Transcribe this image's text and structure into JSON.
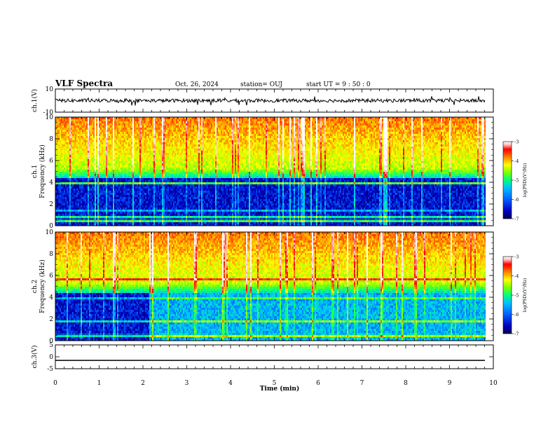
{
  "header": {
    "title": "VLF Spectra",
    "date": "Oct. 26, 2024",
    "station": "station= OUJ",
    "start": "start  UT =   9 : 50 : 0"
  },
  "chart_data": [
    {
      "type": "line",
      "panel": "ch1-waveform",
      "ylabel": "ch.1(V)",
      "ylim": [
        -10,
        10
      ],
      "yticks": [
        "10",
        "-10"
      ],
      "baseline": 0
    },
    {
      "type": "heatmap",
      "panel": "ch1-spectrogram",
      "ylabel": "ch.1\nFrequency (kHz)",
      "ylim": [
        0,
        10
      ],
      "yticks": [
        "0",
        "2",
        "4",
        "6",
        "8",
        "10"
      ],
      "colorbar": {
        "label": "log(PSD)(V²/Hz)",
        "range": [
          -7,
          -3
        ],
        "ticks": [
          "-3",
          "-4",
          "-5",
          "-6",
          "-7"
        ]
      }
    },
    {
      "type": "heatmap",
      "panel": "ch2-spectrogram",
      "ylabel": "ch.2\nFrequency (kHz)",
      "ylim": [
        0,
        10
      ],
      "yticks": [
        "0",
        "2",
        "4",
        "6",
        "8",
        "10"
      ],
      "colorbar": {
        "label": "log(PSD)(V²/Hz)",
        "range": [
          -7,
          -3
        ],
        "ticks": [
          "-3",
          "-4",
          "-5",
          "-6",
          "-7"
        ]
      }
    },
    {
      "type": "line",
      "panel": "ch3-waveform",
      "ylabel": "ch.3(V)",
      "ylim": [
        -5,
        5
      ],
      "yticks": [
        "5",
        "0",
        "-5"
      ],
      "baseline": -1.5
    }
  ],
  "x_axis": {
    "label": "Time (min)",
    "range": [
      0,
      10
    ],
    "ticks": [
      "0",
      "1",
      "2",
      "3",
      "4",
      "5",
      "6",
      "7",
      "8",
      "9",
      "10"
    ]
  },
  "colors": {
    "colormap": [
      "#000050",
      "#0000c0",
      "#0060ff",
      "#00c0ff",
      "#00ff80",
      "#80ff00",
      "#ffff00",
      "#ff8000",
      "#ff0000",
      "#ffc0c0",
      "#ffffff"
    ]
  }
}
